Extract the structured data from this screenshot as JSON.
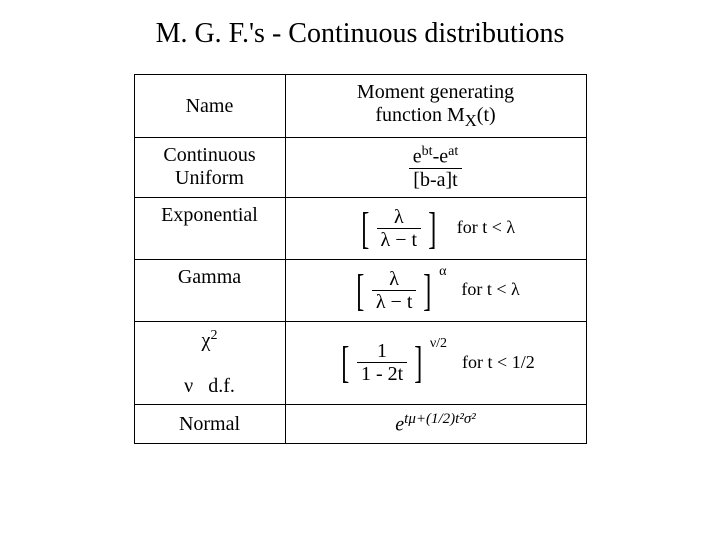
{
  "title": "M. G. F.'s - Continuous distributions",
  "table": {
    "columns": [
      "Name",
      "Moment generating"
    ],
    "header_name": "Name",
    "header_mgf_line1": "Moment generating",
    "header_mgf_line2": "function M",
    "header_mgf_sub": "X",
    "header_mgf_arg": "(t)",
    "rows": [
      {
        "name_line1": "Continuous",
        "name_line2": "Uniform",
        "mgf_num": "e",
        "mgf_num_sup1": "bt",
        "mgf_num_mid": "-e",
        "mgf_num_sup2": "at",
        "mgf_den": "[b-a]t"
      },
      {
        "name": "Exponential",
        "lambda_top": "λ",
        "lambda_bot": "λ − t",
        "cond": "for t < λ"
      },
      {
        "name": "Gamma",
        "lambda_top": "λ",
        "lambda_bot": "λ − t",
        "exp": "α",
        "cond": "for t < λ"
      },
      {
        "name_top": "χ",
        "name_top_sup": "2",
        "name_bot_before": "ν",
        "name_bot_after": "d.f.",
        "frac_top": "1",
        "frac_bot": "1 - 2t",
        "exp": "ν/2",
        "cond": "for t < 1/2"
      },
      {
        "name": "Normal",
        "e": "e",
        "exp_text": "tμ+(1/2)t²σ²"
      }
    ]
  },
  "style": {
    "background_color": "#ffffff",
    "text_color": "#000000",
    "border_color": "#000000",
    "title_fontsize": 28,
    "cell_fontsize": 20,
    "font_family": "Times New Roman",
    "col_name_width": 130,
    "col_mgf_width": 280
  }
}
